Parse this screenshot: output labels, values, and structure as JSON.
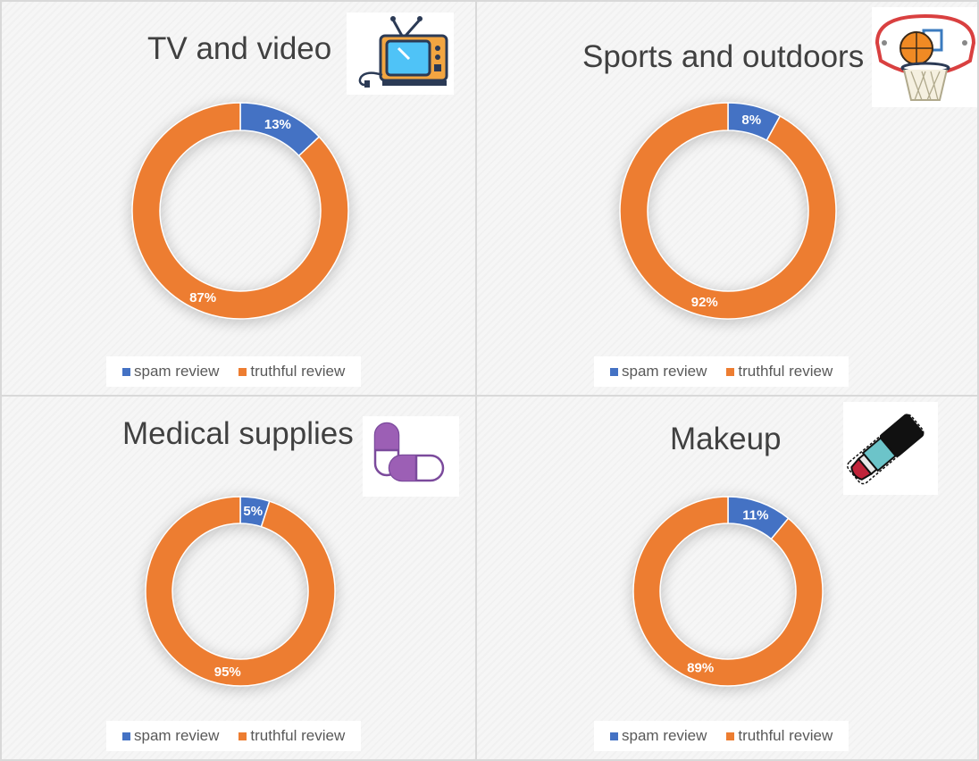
{
  "colors": {
    "spam": "#4472C4",
    "truthful": "#ED7D31"
  },
  "legend": {
    "spam_label": "spam review",
    "truthful_label": "truthful review"
  },
  "chart_data": [
    {
      "type": "pie",
      "variant": "donut",
      "title": "TV and video",
      "icon": "television-icon",
      "categories": [
        "spam review",
        "truthful review"
      ],
      "values": [
        13,
        87
      ],
      "labels": [
        "13%",
        "87%"
      ]
    },
    {
      "type": "pie",
      "variant": "donut",
      "title": "Sports and outdoors",
      "icon": "basketball-hoop-icon",
      "categories": [
        "spam review",
        "truthful review"
      ],
      "values": [
        8,
        92
      ],
      "labels": [
        "8%",
        "92%"
      ]
    },
    {
      "type": "pie",
      "variant": "donut",
      "title": "Medical supplies",
      "icon": "pills-icon",
      "categories": [
        "spam review",
        "truthful review"
      ],
      "values": [
        5,
        95
      ],
      "labels": [
        "5%",
        "95%"
      ]
    },
    {
      "type": "pie",
      "variant": "donut",
      "title": "Makeup",
      "icon": "lipstick-icon",
      "categories": [
        "spam review",
        "truthful review"
      ],
      "values": [
        11,
        89
      ],
      "labels": [
        "11%",
        "89%"
      ]
    }
  ]
}
